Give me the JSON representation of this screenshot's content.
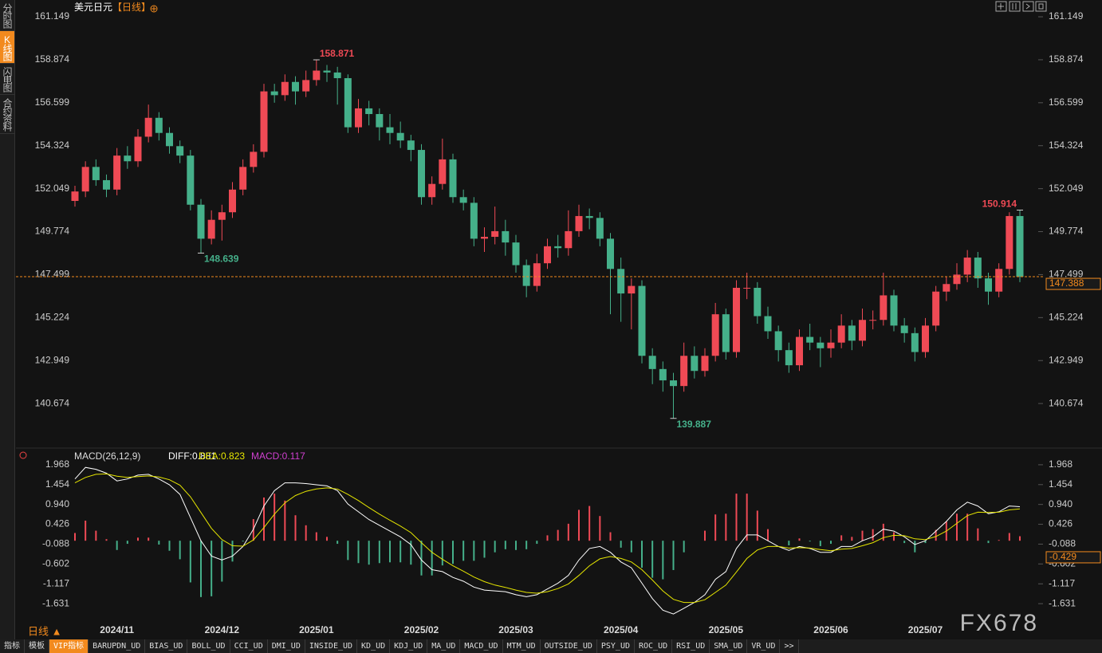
{
  "ui": {
    "sidebar": [
      "分时图",
      "K线图",
      "闪电图",
      "合约资料"
    ],
    "active_tab": 1,
    "symbol": "美元日元",
    "period": "【日线】",
    "period_button": "日线 ▲",
    "watermark": "FX678",
    "tabs": [
      "指标",
      "模板",
      "VIP指标",
      "BARUPDN_UD",
      "BIAS_UD",
      "BOLL_UD",
      "CCI_UD",
      "DMI_UD",
      "INSIDE_UD",
      "KD_UD",
      "KDJ_UD",
      "MA_UD",
      "MACD_UD",
      "MTM_UD",
      "OUTSIDE_UD",
      "PSY_UD",
      "ROC_UD",
      "RSI_UD",
      "SMA_UD",
      "VR_UD",
      ">>"
    ],
    "active_indicator_tab": 2
  },
  "chart_data": [
    {
      "type": "candlestick",
      "categories": [
        null,
        null,
        null,
        null,
        "2024/11",
        null,
        null,
        null,
        null,
        null,
        null,
        null,
        null,
        null,
        "2024/12",
        null,
        null,
        null,
        null,
        null,
        null,
        null,
        null,
        "2025/01",
        null,
        null,
        null,
        null,
        null,
        null,
        null,
        null,
        null,
        "2025/02",
        null,
        null,
        null,
        null,
        null,
        null,
        null,
        null,
        "2025/03",
        null,
        null,
        null,
        null,
        null,
        null,
        null,
        null,
        null,
        "2025/04",
        null,
        null,
        null,
        null,
        null,
        null,
        null,
        null,
        null,
        "2025/05",
        null,
        null,
        null,
        null,
        null,
        null,
        null,
        null,
        null,
        "2025/06",
        null,
        null,
        null,
        null,
        null,
        null,
        null,
        null,
        "2025/07",
        null,
        null,
        null,
        null,
        null,
        null,
        null,
        null,
        null
      ],
      "open": [
        151.4,
        151.9,
        153.2,
        152.5,
        152.0,
        153.8,
        153.5,
        154.8,
        155.8,
        155.0,
        154.3,
        153.8,
        151.2,
        149.4,
        150.4,
        150.8,
        152.0,
        153.2,
        154.0,
        157.2,
        157.0,
        157.7,
        157.2,
        157.8,
        158.3,
        158.2,
        157.9,
        155.3,
        156.3,
        156.0,
        155.3,
        155.0,
        154.6,
        154.1,
        151.6,
        152.3,
        153.6,
        151.6,
        151.3,
        149.4,
        149.5,
        149.8,
        149.2,
        148.0,
        146.9,
        148.1,
        149.0,
        148.9,
        149.8,
        150.6,
        150.5,
        149.4,
        147.8,
        146.5,
        146.9,
        143.2,
        142.5,
        141.9,
        141.6,
        143.2,
        142.4,
        143.2,
        145.4,
        143.4,
        146.8,
        146.8,
        145.3,
        144.5,
        143.5,
        142.7,
        144.2,
        143.9,
        143.6,
        143.9,
        144.8,
        144.0,
        145.1,
        145.1,
        146.4,
        144.8,
        144.4,
        143.4,
        144.8,
        146.6,
        147.0,
        147.5,
        148.4,
        147.3,
        146.6,
        147.8,
        150.6
      ],
      "high": [
        152.2,
        153.5,
        153.6,
        152.8,
        154.2,
        154.3,
        155.2,
        156.5,
        156.1,
        155.3,
        154.6,
        154.1,
        151.5,
        150.9,
        151.2,
        152.4,
        153.6,
        154.4,
        157.6,
        157.6,
        158.1,
        158.0,
        158.3,
        158.871,
        158.6,
        158.5,
        158.1,
        156.8,
        156.7,
        156.3,
        156.0,
        155.6,
        154.9,
        154.4,
        152.7,
        154.7,
        153.9,
        152.0,
        151.6,
        150.0,
        151.1,
        150.4,
        149.6,
        148.3,
        148.6,
        149.4,
        149.6,
        150.9,
        151.2,
        151.0,
        150.8,
        149.7,
        148.4,
        147.3,
        147.2,
        143.6,
        142.9,
        142.3,
        143.9,
        143.7,
        143.6,
        146.0,
        145.7,
        147.2,
        147.6,
        147.1,
        145.8,
        144.8,
        143.9,
        144.6,
        144.9,
        144.2,
        144.6,
        145.4,
        145.1,
        145.7,
        145.6,
        147.6,
        146.7,
        145.2,
        144.7,
        145.2,
        146.9,
        147.4,
        148.1,
        148.8,
        148.7,
        147.6,
        148.1,
        150.8,
        150.914
      ],
      "low": [
        151.1,
        151.6,
        152.2,
        151.6,
        151.7,
        153.1,
        153.2,
        154.5,
        154.6,
        153.9,
        153.4,
        150.9,
        148.639,
        149.1,
        149.3,
        150.5,
        151.7,
        152.9,
        153.7,
        156.6,
        156.7,
        156.5,
        156.9,
        157.5,
        157.7,
        156.5,
        155.0,
        155.0,
        155.4,
        154.6,
        154.4,
        154.2,
        153.5,
        151.2,
        151.2,
        152.0,
        151.3,
        150.9,
        149.0,
        148.7,
        149.1,
        148.5,
        147.6,
        146.3,
        146.6,
        147.8,
        148.4,
        148.5,
        149.5,
        149.9,
        149.0,
        145.4,
        145.0,
        144.6,
        142.8,
        141.7,
        141.3,
        139.887,
        141.3,
        142.0,
        142.1,
        142.9,
        143.0,
        143.1,
        146.2,
        144.9,
        144.1,
        142.9,
        142.3,
        142.4,
        143.5,
        142.6,
        143.1,
        143.6,
        143.5,
        143.7,
        144.6,
        144.8,
        144.5,
        143.9,
        142.9,
        143.1,
        144.5,
        146.1,
        146.7,
        147.1,
        146.8,
        145.9,
        146.3,
        147.5,
        147.1
      ],
      "close": [
        151.9,
        153.2,
        152.5,
        152.0,
        153.8,
        153.5,
        154.8,
        155.8,
        155.0,
        154.3,
        153.8,
        151.2,
        149.4,
        150.4,
        150.8,
        152.0,
        153.2,
        154.0,
        157.2,
        157.0,
        157.7,
        157.2,
        157.8,
        158.3,
        158.2,
        157.9,
        155.3,
        156.3,
        156.0,
        155.3,
        155.0,
        154.6,
        154.1,
        151.6,
        152.3,
        153.6,
        151.6,
        151.3,
        149.4,
        149.5,
        149.8,
        149.2,
        148.0,
        146.9,
        148.1,
        149.0,
        148.9,
        149.8,
        150.6,
        150.5,
        149.4,
        147.8,
        146.5,
        146.9,
        143.2,
        142.5,
        141.9,
        141.6,
        143.2,
        142.4,
        143.2,
        145.4,
        143.4,
        146.8,
        146.8,
        145.3,
        144.5,
        143.5,
        142.7,
        144.2,
        143.9,
        143.6,
        143.9,
        144.8,
        144.0,
        145.1,
        145.1,
        146.4,
        144.8,
        144.4,
        143.4,
        144.8,
        146.6,
        147.0,
        147.5,
        148.4,
        147.3,
        146.6,
        147.8,
        150.6,
        147.388
      ],
      "up_color": "#ef4a55",
      "down_color": "#45b08a",
      "last_color": "#f28a1e",
      "ylim": [
        138.61,
        161.7
      ],
      "yticks": [
        140.674,
        142.949,
        145.224,
        147.499,
        149.774,
        152.049,
        154.324,
        156.599,
        158.874,
        161.149
      ],
      "annotations": [
        158.871,
        148.639,
        139.887,
        150.914
      ],
      "grid": false
    },
    {
      "type": "macd",
      "title": "MACD(26,12,9)",
      "series": [
        {
          "name": "DIFF:0.881",
          "color": "#ffffff",
          "values": [
            1.6,
            1.9,
            1.85,
            1.75,
            1.55,
            1.6,
            1.7,
            1.72,
            1.6,
            1.45,
            1.2,
            0.6,
            0.0,
            -0.4,
            -0.5,
            -0.4,
            -0.15,
            0.3,
            0.9,
            1.3,
            1.5,
            1.5,
            1.48,
            1.45,
            1.42,
            1.3,
            0.95,
            0.75,
            0.55,
            0.4,
            0.25,
            0.1,
            -0.1,
            -0.5,
            -0.75,
            -0.8,
            -0.95,
            -1.05,
            -1.2,
            -1.28,
            -1.3,
            -1.32,
            -1.4,
            -1.45,
            -1.4,
            -1.25,
            -1.1,
            -0.9,
            -0.5,
            -0.2,
            -0.15,
            -0.3,
            -0.55,
            -0.7,
            -1.1,
            -1.5,
            -1.8,
            -1.9,
            -1.75,
            -1.6,
            -1.4,
            -1.0,
            -0.8,
            -0.2,
            0.15,
            0.15,
            0.0,
            -0.15,
            -0.25,
            -0.15,
            -0.2,
            -0.3,
            -0.3,
            -0.15,
            -0.15,
            0.0,
            0.1,
            0.3,
            0.25,
            0.1,
            -0.1,
            0.0,
            0.25,
            0.5,
            0.8,
            1.0,
            0.9,
            0.7,
            0.75,
            0.9,
            0.881
          ]
        },
        {
          "name": "DEA:0.823",
          "color": "#e6e600",
          "values": [
            1.5,
            1.64,
            1.72,
            1.73,
            1.67,
            1.64,
            1.66,
            1.68,
            1.65,
            1.58,
            1.44,
            1.14,
            0.73,
            0.32,
            0.03,
            -0.13,
            -0.14,
            0.02,
            0.34,
            0.69,
            0.98,
            1.17,
            1.28,
            1.34,
            1.37,
            1.34,
            1.2,
            1.04,
            0.86,
            0.69,
            0.53,
            0.38,
            0.21,
            -0.05,
            -0.3,
            -0.48,
            -0.65,
            -0.79,
            -0.94,
            -1.06,
            -1.15,
            -1.21,
            -1.28,
            -1.34,
            -1.36,
            -1.32,
            -1.24,
            -1.12,
            -0.9,
            -0.65,
            -0.47,
            -0.41,
            -0.46,
            -0.55,
            -0.75,
            -1.02,
            -1.3,
            -1.52,
            -1.6,
            -1.6,
            -1.53,
            -1.34,
            -1.15,
            -0.81,
            -0.46,
            -0.24,
            -0.15,
            -0.15,
            -0.19,
            -0.18,
            -0.19,
            -0.23,
            -0.26,
            -0.22,
            -0.2,
            -0.13,
            -0.05,
            0.08,
            0.14,
            0.13,
            0.05,
            0.03,
            0.11,
            0.25,
            0.45,
            0.65,
            0.74,
            0.73,
            0.74,
            0.8,
            0.823
          ]
        },
        {
          "name": "MACD:0.117",
          "color": "#d040d0",
          "up_color": "#ef4a55",
          "down_color": "#45b08a",
          "values": [
            0.2,
            0.52,
            0.26,
            0.04,
            -0.24,
            -0.08,
            0.08,
            0.08,
            -0.1,
            -0.26,
            -0.48,
            -1.08,
            -1.46,
            -1.44,
            -1.06,
            -0.54,
            -0.02,
            0.56,
            1.12,
            1.22,
            1.04,
            0.66,
            0.4,
            0.22,
            0.1,
            -0.08,
            -0.5,
            -0.58,
            -0.62,
            -0.58,
            -0.56,
            -0.56,
            -0.62,
            -0.9,
            -0.9,
            -0.64,
            -0.6,
            -0.52,
            -0.52,
            -0.44,
            -0.3,
            -0.22,
            -0.24,
            -0.22,
            -0.08,
            0.14,
            0.28,
            0.44,
            0.8,
            0.9,
            0.64,
            0.22,
            -0.18,
            -0.3,
            -0.7,
            -0.96,
            -1.0,
            -0.76,
            -0.3,
            0.0,
            0.26,
            0.68,
            0.7,
            1.22,
            1.22,
            0.78,
            0.3,
            0.0,
            -0.12,
            0.06,
            -0.02,
            -0.14,
            -0.08,
            0.14,
            0.1,
            0.26,
            0.3,
            0.44,
            0.22,
            -0.06,
            -0.3,
            -0.06,
            0.28,
            0.5,
            0.7,
            0.7,
            0.32,
            -0.06,
            0.02,
            0.2,
            0.117
          ]
        }
      ],
      "ylim": [
        -2.145,
        2.235
      ],
      "yticks": [
        -1.631,
        -1.117,
        -0.602,
        -0.088,
        0.426,
        {
          "value": 0.94,
          "label": "0.940"
        },
        1.454,
        1.968
      ],
      "marker": -0.429,
      "marker_color": "#f28a1e"
    }
  ]
}
